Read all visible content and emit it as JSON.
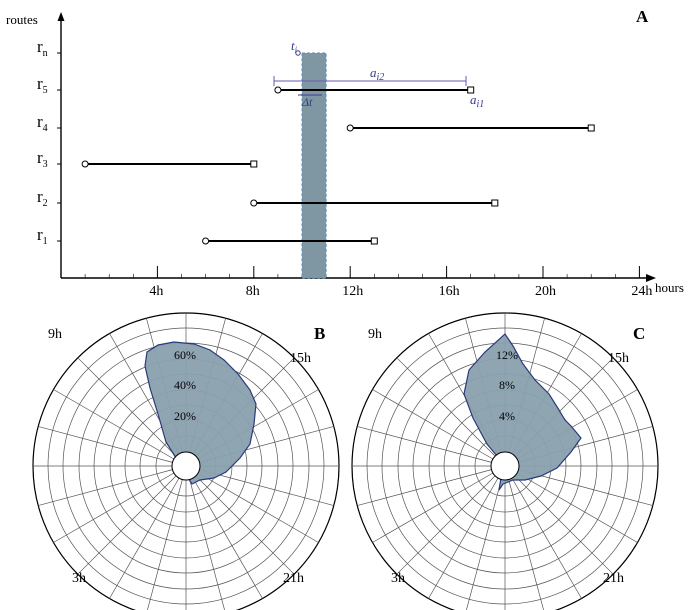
{
  "panelA": {
    "label": "A",
    "ylabel": "routes",
    "xlabel": "hours",
    "x_ticks": [
      "4h",
      "8h",
      "12h",
      "16h",
      "20h",
      "24h"
    ],
    "x_tick_values": [
      4,
      8,
      12,
      16,
      20,
      24
    ],
    "routes": [
      {
        "name": "r",
        "sub": "1",
        "start": 6,
        "end": 13
      },
      {
        "name": "r",
        "sub": "2",
        "start": 8,
        "end": 18
      },
      {
        "name": "r",
        "sub": "3",
        "start": 1,
        "end": 8
      },
      {
        "name": "r",
        "sub": "4",
        "start": 12,
        "end": 22
      },
      {
        "name": "r",
        "sub": "5",
        "start": 9,
        "end": 17
      },
      {
        "name": "r",
        "sub": "n",
        "start": null,
        "end": null
      }
    ],
    "highlight": {
      "start": 10,
      "end": 11
    },
    "annotations": {
      "t": "t",
      "t_sub": "i",
      "delta": "Δt",
      "a_i2": "a",
      "a_i2_sub": "i2",
      "a_i1": "a",
      "a_i1_sub": "i1"
    }
  },
  "panelB": {
    "label": "B",
    "hour_labels": {
      "top_left": "9h",
      "top_right": "15h",
      "bottom_left": "3h",
      "bottom_right": "21h"
    },
    "rings": [
      "20%",
      "40%",
      "60%"
    ],
    "ring_values": [
      20,
      40,
      60
    ]
  },
  "panelC": {
    "label": "C",
    "hour_labels": {
      "top_left": "9h",
      "top_right": "15h",
      "bottom_left": "3h",
      "bottom_right": "21h"
    },
    "rings": [
      "4%",
      "8%",
      "12%"
    ],
    "ring_values": [
      4,
      8,
      12
    ]
  },
  "colors": {
    "fill": "#8aa0ae",
    "stroke": "#2a3a7a",
    "highlight": "#7f96a3",
    "annotation": "#3a3a8a"
  }
}
